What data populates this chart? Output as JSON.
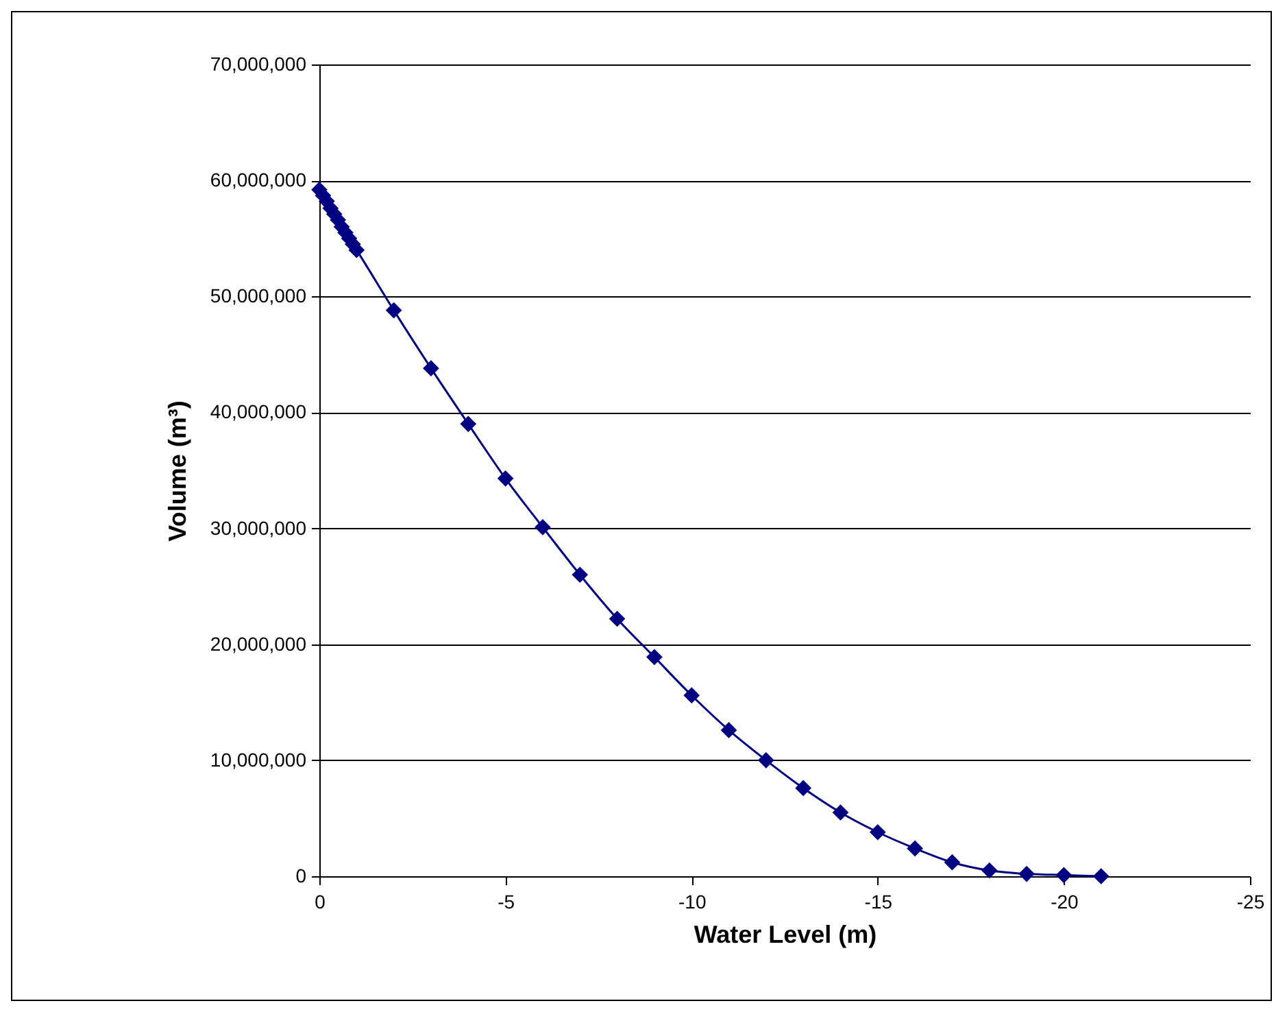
{
  "chart_data": {
    "type": "line",
    "xlabel": "Water Level  (m)",
    "ylabel": "Volume (m³)",
    "x": [
      0,
      -0.1,
      -0.2,
      -0.3,
      -0.4,
      -0.5,
      -0.6,
      -0.7,
      -0.8,
      -0.9,
      -1,
      -2,
      -3,
      -4,
      -5,
      -6,
      -7,
      -8,
      -9,
      -10,
      -11,
      -12,
      -13,
      -14,
      -15,
      -16,
      -17,
      -18,
      -19,
      -20,
      -21
    ],
    "series": [
      {
        "color": "#000080",
        "values": [
          59200000,
          58700000,
          58200000,
          57600000,
          57100000,
          56600000,
          56000000,
          55500000,
          55000000,
          54500000,
          54000000,
          48800000,
          43800000,
          39000000,
          34300000,
          30100000,
          26000000,
          22200000,
          18900000,
          15600000,
          12600000,
          10000000,
          7600000,
          5500000,
          3800000,
          2400000,
          1200000,
          500000,
          200000,
          100000,
          0
        ]
      }
    ],
    "xlim": [
      0,
      -25
    ],
    "xticks": [
      0,
      -5,
      -10,
      -15,
      -20,
      -25
    ],
    "ylim": [
      0,
      70000000
    ],
    "yticks": [
      0,
      {
        "value": 10000000,
        "label": "10,000,000"
      },
      {
        "value": 20000000,
        "label": "20,000,000"
      },
      {
        "value": 30000000,
        "label": "30,000,000"
      },
      {
        "value": 40000000,
        "label": "40,000,000"
      },
      {
        "value": 50000000,
        "label": "50,000,000"
      },
      {
        "value": 60000000,
        "label": "60,000,000"
      },
      {
        "value": 70000000,
        "label": "70,000,000"
      }
    ],
    "grid": "y",
    "marker": "diamond",
    "line_style": "solid"
  }
}
